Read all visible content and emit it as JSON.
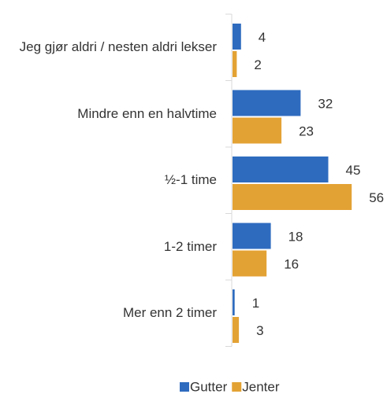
{
  "chart_data": {
    "type": "bar",
    "orientation": "horizontal",
    "categories": [
      "Jeg gjør aldri / nesten aldri lekser",
      "Mindre enn en halvtime",
      "½-1 time",
      "1-2 timer",
      "Mer enn 2 timer"
    ],
    "series": [
      {
        "name": "Gutter",
        "color": "#2e6bbf",
        "values": [
          4,
          32,
          45,
          18,
          1
        ]
      },
      {
        "name": "Jenter",
        "color": "#e3a234",
        "values": [
          2,
          23,
          56,
          16,
          3
        ]
      }
    ],
    "legend": "bottom"
  }
}
